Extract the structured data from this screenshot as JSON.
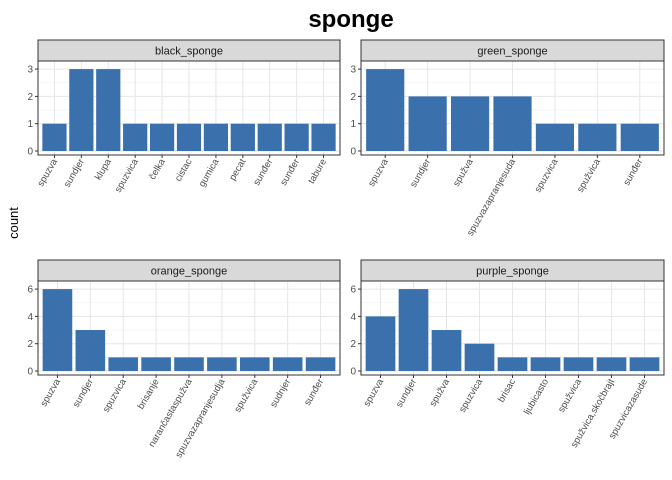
{
  "chart_data": {
    "type": "bar",
    "title": "sponge",
    "xlabel": "",
    "ylabel": "count",
    "grid": true,
    "bar_color": "#3a70ac",
    "strip_fill": "#d9d9d9",
    "facets": [
      {
        "name": "black_sponge",
        "ylim": [
          0,
          3.15
        ],
        "yticks": [
          0,
          1,
          2,
          3
        ],
        "categories": [
          "spuzva",
          "sundjer",
          "klupa",
          "spuzvica",
          "čelka",
          "cistac",
          "gumica",
          "pecat",
          "sunđer",
          "sunđer",
          "tabure"
        ],
        "values": [
          1,
          3,
          3,
          1,
          1,
          1,
          1,
          1,
          1,
          1,
          1
        ]
      },
      {
        "name": "green_sponge",
        "ylim": [
          0,
          3.15
        ],
        "yticks": [
          0,
          1,
          2,
          3
        ],
        "categories": [
          "spuzva",
          "sundjer",
          "spužva",
          "spuzvazapranjesuda",
          "spuzvica",
          "spužvica",
          "sunđer"
        ],
        "values": [
          3,
          2,
          2,
          2,
          1,
          1,
          1
        ]
      },
      {
        "name": "orange_sponge",
        "ylim": [
          0,
          6.3
        ],
        "yticks": [
          0,
          2,
          4,
          6
        ],
        "categories": [
          "spuzva",
          "sundjer",
          "spuzvica",
          "brisanje",
          "narančastaspužva",
          "spuzvazapranjesudja",
          "spužvica",
          "sudnjer",
          "sunđer"
        ],
        "values": [
          6,
          3,
          1,
          1,
          1,
          1,
          1,
          1,
          1
        ]
      },
      {
        "name": "purple_sponge",
        "ylim": [
          0,
          6.3
        ],
        "yticks": [
          0,
          2,
          4,
          6
        ],
        "categories": [
          "spuzva",
          "sundjer",
          "spužva",
          "spuzvica",
          "brisac",
          "ljubicasto",
          "spužvica",
          "spužvica,skočbrajt",
          "spuzvicazasude"
        ],
        "values": [
          4,
          6,
          3,
          2,
          1,
          1,
          1,
          1,
          1
        ]
      }
    ]
  }
}
